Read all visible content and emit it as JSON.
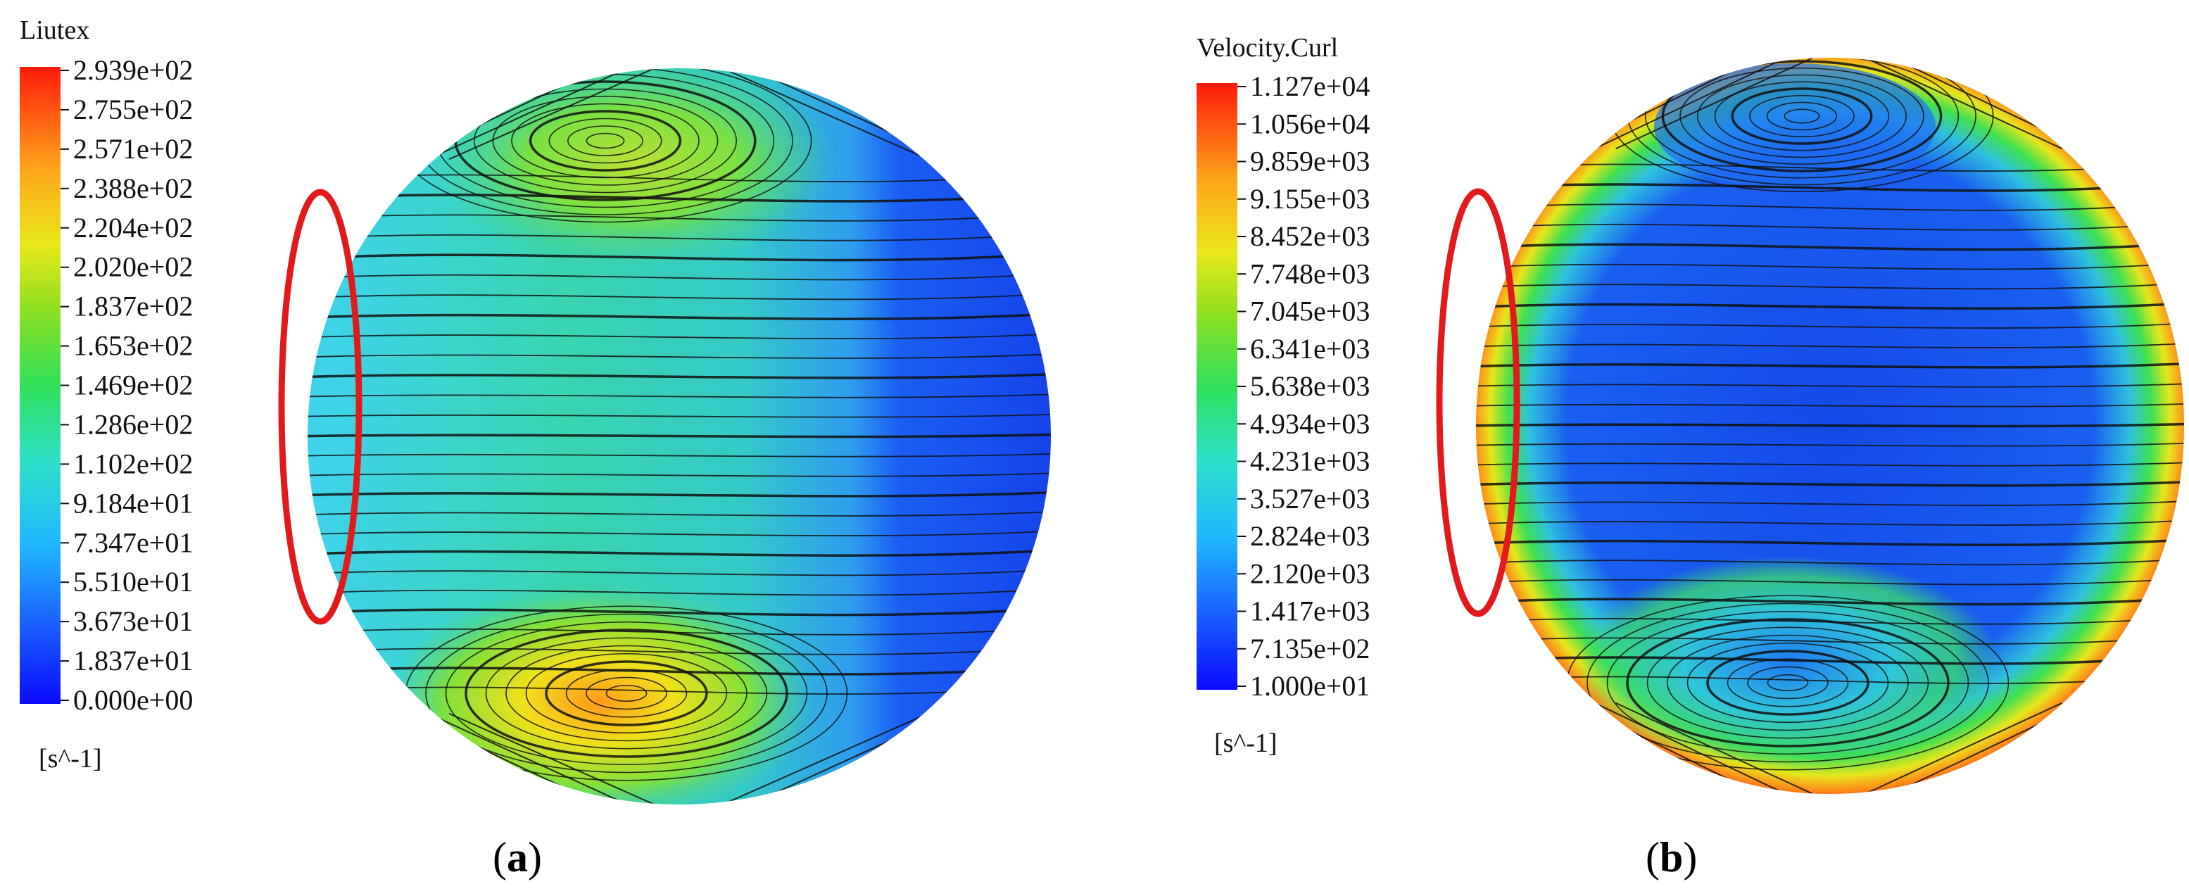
{
  "panels": [
    {
      "id": "a",
      "legend": {
        "title": "Liutex",
        "unit": "[s^-1]",
        "ticks": [
          "2.939e+02",
          "2.755e+02",
          "2.571e+02",
          "2.388e+02",
          "2.204e+02",
          "2.020e+02",
          "1.837e+02",
          "1.653e+02",
          "1.469e+02",
          "1.286e+02",
          "1.102e+02",
          "9.184e+01",
          "7.347e+01",
          "5.510e+01",
          "3.673e+01",
          "1.837e+01",
          "0.000e+00"
        ]
      },
      "caption": {
        "open": "(",
        "letter": "a",
        "close": ")"
      }
    },
    {
      "id": "b",
      "legend": {
        "title": "Velocity.Curl",
        "unit": "[s^-1]",
        "ticks": [
          "1.127e+04",
          "1.056e+04",
          "9.859e+03",
          "9.155e+03",
          "8.452e+03",
          "7.748e+03",
          "7.045e+03",
          "6.341e+03",
          "5.638e+03",
          "4.934e+03",
          "4.231e+03",
          "3.527e+03",
          "2.824e+03",
          "2.120e+03",
          "1.417e+03",
          "7.135e+02",
          "1.000e+01"
        ]
      },
      "caption": {
        "open": "(",
        "letter": "b",
        "close": ")"
      }
    }
  ],
  "colors": {
    "highlight_ellipse": "#e31a1c",
    "streamline": "#111111"
  }
}
